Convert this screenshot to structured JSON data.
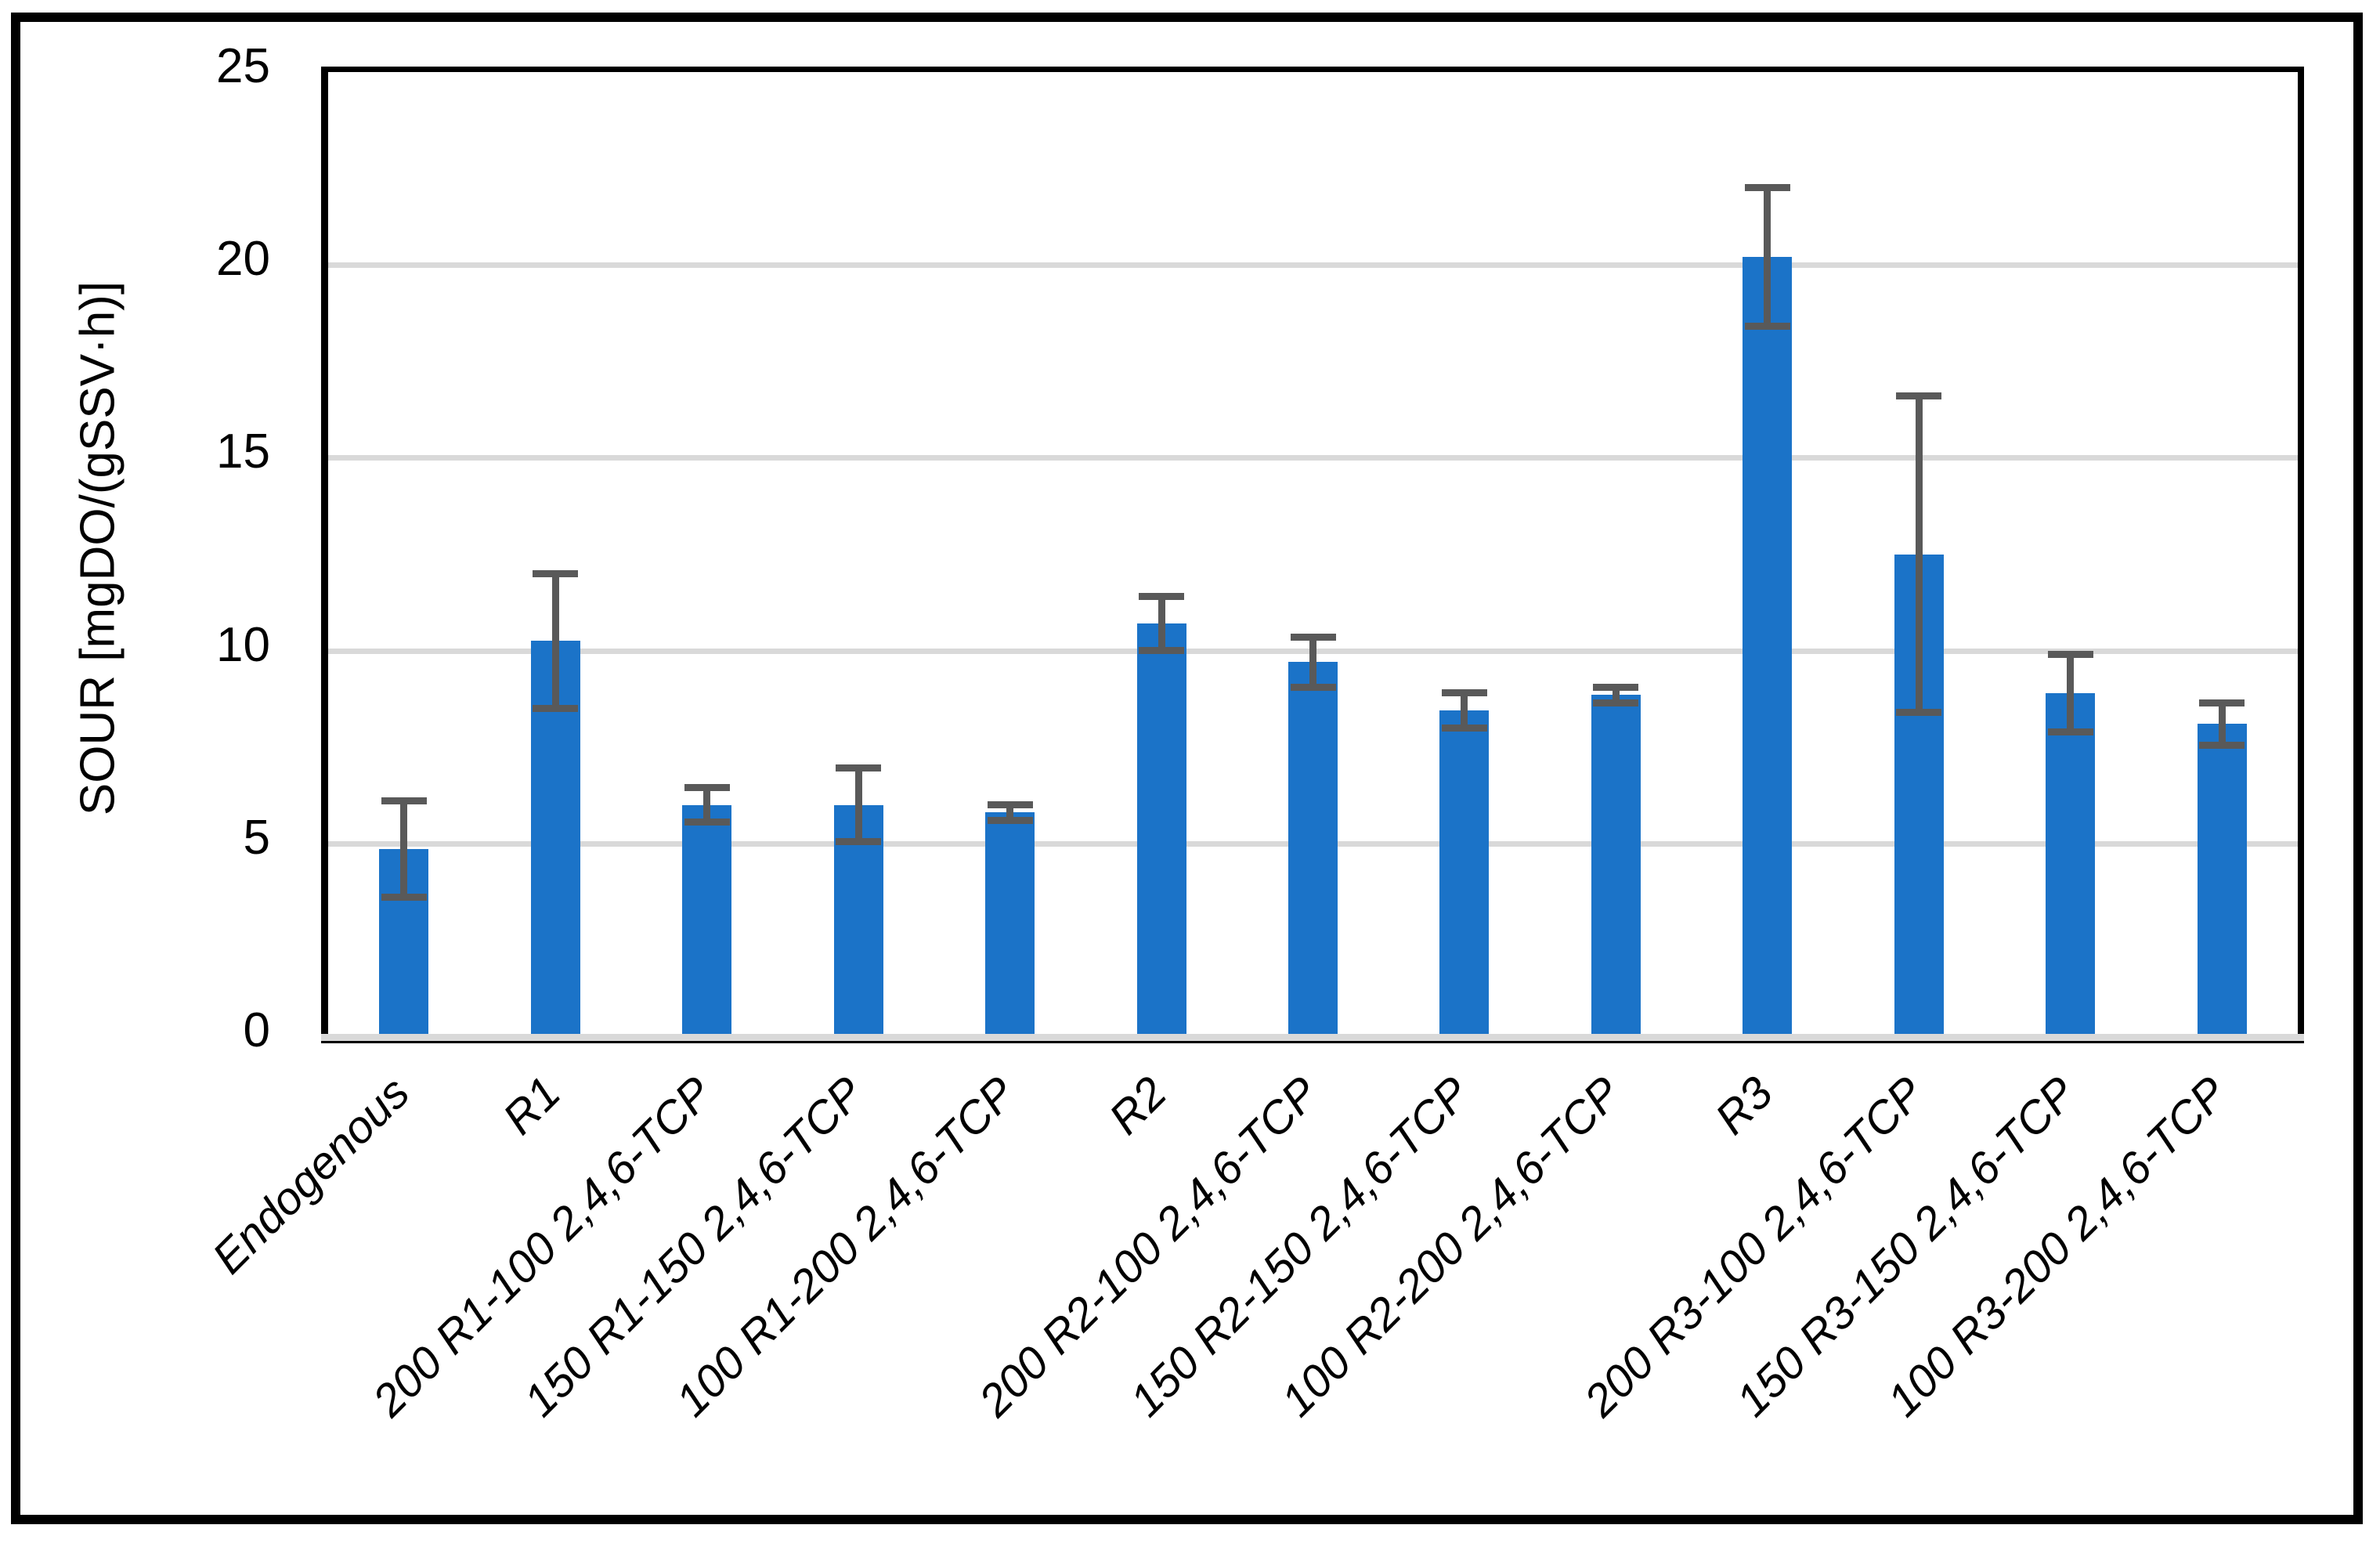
{
  "figure": {
    "background_color": "#ffffff",
    "border_color": "#000000"
  },
  "chart_data": {
    "type": "bar",
    "title": "",
    "xlabel": "",
    "ylabel": "SOUR [mgDO/(gSSV·h)]",
    "ylim": [
      0,
      25
    ],
    "yticks": [
      0,
      5,
      10,
      15,
      20,
      25
    ],
    "grid": "horizontal",
    "legend_position": "none",
    "bar_color": "#1B73C8",
    "error_bar_color": "#595959",
    "gridline_color": "#D9D9D9",
    "categories": [
      "Endogenous",
      "R1",
      "200 R1-100 2,4,6-TCP",
      "150 R1-150 2,4,6-TCP",
      "100 R1-200 2,4,6-TCP",
      "R2",
      "200 R2-100 2,4,6-TCP",
      "150 R2-150 2,4,6-TCP",
      "100 R2-200 2,4,6-TCP",
      "R3",
      "200 R3-100 2,4,6-TCP",
      "150 R3-150 2,4,6-TCP",
      "100 R3-200 2,4,6-TCP"
    ],
    "values": [
      4.85,
      10.25,
      6.0,
      6.0,
      5.8,
      10.7,
      9.7,
      8.45,
      8.85,
      20.2,
      12.5,
      8.9,
      8.1
    ],
    "errors": [
      1.25,
      1.75,
      0.45,
      0.95,
      0.2,
      0.7,
      0.65,
      0.45,
      0.2,
      1.8,
      4.1,
      1.0,
      0.55
    ]
  }
}
